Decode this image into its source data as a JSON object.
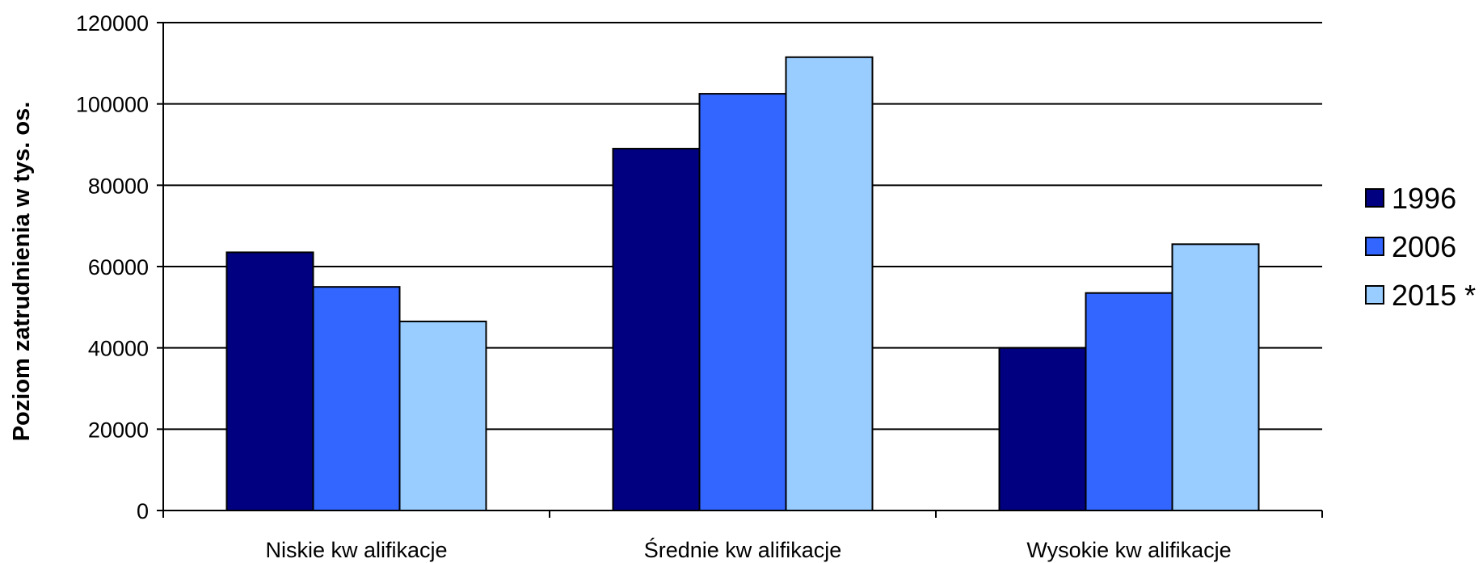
{
  "chart_data": {
    "type": "bar",
    "title": "",
    "xlabel": "",
    "ylabel": "Poziom zatrudnienia w tys. os.",
    "ylim": [
      0,
      120000
    ],
    "yticks": [
      "0",
      "20000",
      "40000",
      "60000",
      "80000",
      "100000",
      "120000"
    ],
    "grid": true,
    "legend_position": "right",
    "categories": [
      "Niskie kw alifikacje",
      "Średnie kw alifikacje",
      "Wysokie kw alifikacje"
    ],
    "series": [
      {
        "name": "1996",
        "color": "#000080",
        "values": [
          63500,
          89000,
          40000
        ]
      },
      {
        "name": "2006",
        "color": "#3366FF",
        "values": [
          55000,
          102500,
          53500
        ]
      },
      {
        "name": "2015 *",
        "color": "#99CCFF",
        "values": [
          46500,
          111500,
          65500
        ]
      }
    ]
  }
}
